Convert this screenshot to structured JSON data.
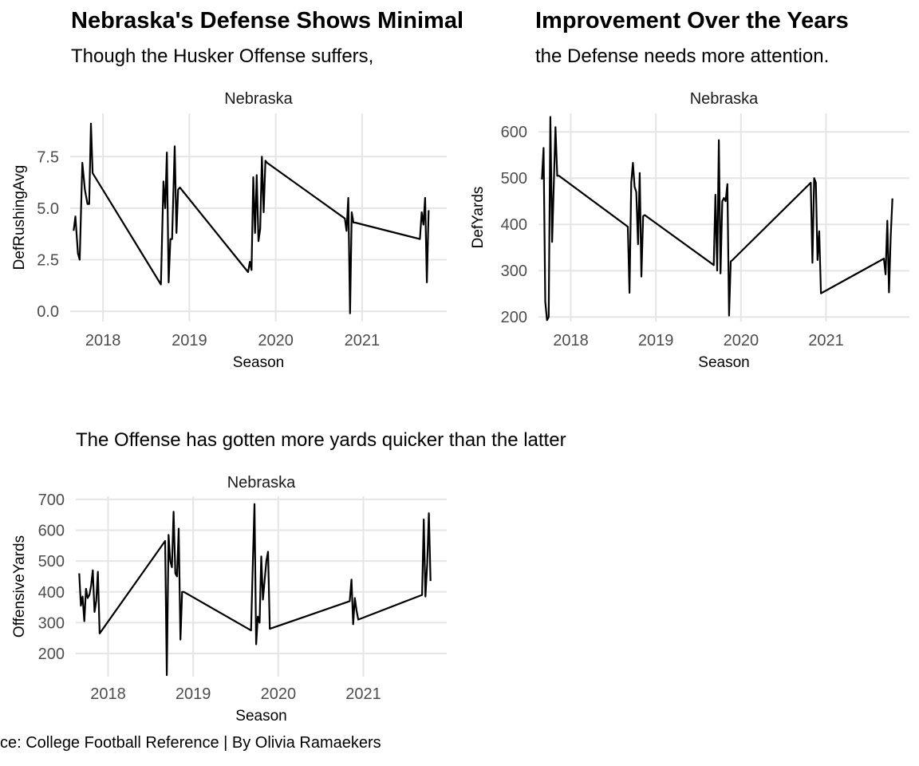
{
  "header": {
    "title_left": "Nebraska's Defense Shows Minimal",
    "title_right": "Improvement Over the Years",
    "subtitle_left": "Though the Husker Offense suffers,",
    "subtitle_right": "the Defense needs more attention.",
    "bottom_subtitle": "The Offense has gotten more yards quicker than the latter",
    "caption": "ce: College Football Reference | By Olivia Ramaekers"
  },
  "colors": {
    "line": "#000000",
    "grid": "#e5e5e5",
    "tick_text": "#4d4d4d"
  },
  "chart_data": [
    {
      "type": "line",
      "facet": "Nebraska",
      "xlabel": "Season",
      "ylabel": "DefRushingAvg",
      "xlim": [
        2017.62,
        2021.98
      ],
      "ylim": [
        -0.5,
        9.6
      ],
      "xticks": [
        2018,
        2019,
        2020,
        2021
      ],
      "xtick_labels": [
        "2018",
        "2019",
        "2020",
        "2021"
      ],
      "yticks": [
        0,
        2.5,
        5,
        7.5
      ],
      "ytick_labels": [
        "0.0",
        "2.5",
        "5.0",
        "7.5"
      ],
      "grid": true,
      "x": [
        2017.66,
        2017.68,
        2017.71,
        2017.73,
        2017.76,
        2017.79,
        2017.82,
        2017.84,
        2017.86,
        2017.88,
        2018.67,
        2018.7,
        2018.72,
        2018.74,
        2018.76,
        2018.78,
        2018.8,
        2018.83,
        2018.85,
        2018.87,
        2018.89,
        2019.68,
        2019.7,
        2019.72,
        2019.74,
        2019.76,
        2019.78,
        2019.8,
        2019.82,
        2019.84,
        2019.86,
        2019.88,
        2019.9,
        2020.8,
        2020.82,
        2020.84,
        2020.86,
        2020.88,
        2020.9,
        2020.92,
        2021.67,
        2021.69,
        2021.71,
        2021.73,
        2021.75,
        2021.77
      ],
      "y": [
        3.9,
        4.6,
        2.8,
        2.5,
        7.2,
        5.9,
        5.2,
        5.2,
        9.1,
        6.7,
        1.3,
        6.3,
        5.0,
        7.7,
        1.4,
        3.5,
        3.5,
        8.0,
        3.8,
        5.9,
        6.0,
        1.9,
        2.4,
        2.0,
        6.5,
        3.8,
        6.6,
        3.4,
        4.0,
        7.5,
        4.8,
        7.3,
        7.2,
        4.5,
        3.9,
        5.5,
        -0.1,
        4.8,
        4.3,
        4.3,
        3.5,
        4.8,
        4.2,
        5.5,
        1.4,
        4.9
      ]
    },
    {
      "type": "line",
      "facet": "Nebraska",
      "xlabel": "Season",
      "ylabel": "DefYards",
      "xlim": [
        2017.62,
        2021.98
      ],
      "ylim": [
        190,
        640
      ],
      "xticks": [
        2018,
        2019,
        2020,
        2021
      ],
      "xtick_labels": [
        "2018",
        "2019",
        "2020",
        "2021"
      ],
      "yticks": [
        200,
        300,
        400,
        500,
        600
      ],
      "ytick_labels": [
        "200",
        "300",
        "400",
        "500",
        "600"
      ],
      "grid": true,
      "x": [
        2017.66,
        2017.68,
        2017.7,
        2017.72,
        2017.74,
        2017.76,
        2017.78,
        2017.8,
        2017.82,
        2017.84,
        2017.86,
        2018.67,
        2018.69,
        2018.71,
        2018.73,
        2018.75,
        2018.77,
        2018.79,
        2018.81,
        2018.83,
        2018.85,
        2018.87,
        2019.68,
        2019.7,
        2019.72,
        2019.74,
        2019.76,
        2019.78,
        2019.8,
        2019.82,
        2019.84,
        2019.86,
        2019.88,
        2019.9,
        2020.82,
        2020.84,
        2020.86,
        2020.88,
        2020.9,
        2020.92,
        2020.94,
        2021.68,
        2021.7,
        2021.72,
        2021.74,
        2021.76,
        2021.78
      ],
      "y": [
        497,
        565,
        233,
        193,
        200,
        632,
        362,
        487,
        610,
        505,
        505,
        395,
        252,
        490,
        533,
        481,
        470,
        357,
        511,
        287,
        418,
        420,
        312,
        464,
        300,
        582,
        294,
        450,
        457,
        450,
        487,
        203,
        320,
        323,
        490,
        317,
        500,
        490,
        323,
        385,
        251,
        326,
        292,
        408,
        253,
        373,
        456
      ]
    },
    {
      "type": "line",
      "facet": "Nebraska",
      "xlabel": "Season",
      "ylabel": "OffensiveYards",
      "xlim": [
        2017.62,
        2021.98
      ],
      "ylim": [
        125,
        710
      ],
      "xticks": [
        2018,
        2019,
        2020,
        2021
      ],
      "xtick_labels": [
        "2018",
        "2019",
        "2020",
        "2021"
      ],
      "yticks": [
        200,
        300,
        400,
        500,
        600,
        700
      ],
      "ytick_labels": [
        "200",
        "300",
        "400",
        "500",
        "600",
        "700"
      ],
      "grid": true,
      "x": [
        2017.66,
        2017.68,
        2017.7,
        2017.72,
        2017.74,
        2017.76,
        2017.78,
        2017.8,
        2017.82,
        2017.84,
        2017.86,
        2017.88,
        2017.9,
        2018.67,
        2018.69,
        2018.71,
        2018.73,
        2018.75,
        2018.77,
        2018.79,
        2018.81,
        2018.83,
        2018.85,
        2018.87,
        2018.89,
        2019.68,
        2019.7,
        2019.72,
        2019.74,
        2019.76,
        2019.78,
        2019.8,
        2019.82,
        2019.84,
        2019.86,
        2019.88,
        2019.9,
        2020.84,
        2020.86,
        2020.88,
        2020.9,
        2020.92,
        2020.94,
        2021.69,
        2021.71,
        2021.73,
        2021.75,
        2021.77,
        2021.79
      ],
      "y": [
        460,
        355,
        385,
        305,
        410,
        380,
        390,
        420,
        470,
        335,
        370,
        465,
        265,
        565,
        130,
        585,
        500,
        480,
        660,
        460,
        450,
        605,
        245,
        400,
        400,
        275,
        480,
        685,
        230,
        320,
        300,
        515,
        375,
        440,
        500,
        530,
        280,
        370,
        440,
        295,
        380,
        340,
        310,
        390,
        635,
        385,
        490,
        655,
        435
      ]
    }
  ]
}
